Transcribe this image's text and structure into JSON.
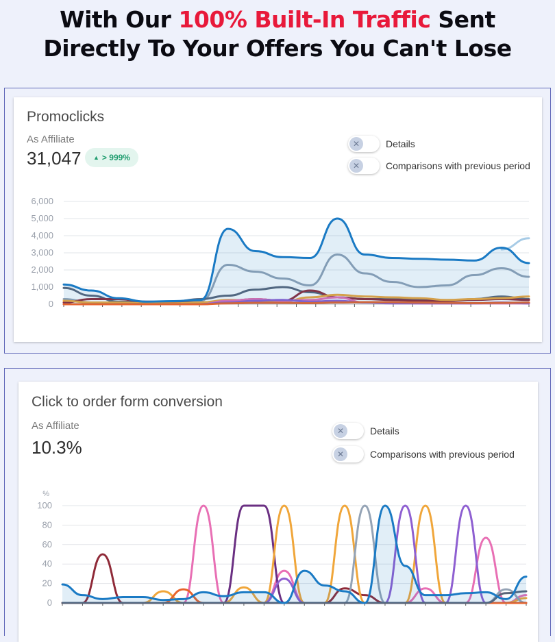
{
  "headline": {
    "line1_pre": "With Our ",
    "line1_accent": "100% Built-In Traffic",
    "line1_post": " Sent",
    "line2": "Directly To Your Offers You Can't Lose",
    "accent_color": "#e8193a"
  },
  "promoclicks": {
    "title": "Promoclicks",
    "subtitle": "As Affiliate",
    "value": "31,047",
    "badge": "> 999%",
    "badge_icon": "arrow-up-icon",
    "toggles": [
      {
        "label": "Details",
        "icon": "close-icon"
      },
      {
        "label": "Comparisons with previous period",
        "icon": "close-icon"
      }
    ]
  },
  "conversion": {
    "title": "Click to order form conversion",
    "subtitle": "As Affiliate",
    "value": "10.3%",
    "toggles": [
      {
        "label": "Details",
        "icon": "close-icon"
      },
      {
        "label": "Comparisons with previous period",
        "icon": "close-icon"
      }
    ]
  },
  "chart_data": [
    {
      "type": "area",
      "ylim": [
        0,
        6000
      ],
      "yticks": [
        "6,000",
        "5,000",
        "4,000",
        "3,000",
        "2,000",
        "1,000",
        "0"
      ],
      "grid": true,
      "x_count": 25,
      "series": [
        {
          "color": "#1a7ac4",
          "values": [
            1150,
            800,
            350,
            150,
            180,
            250,
            4400,
            3100,
            2750,
            2700,
            5000,
            2900,
            2700,
            2650,
            2600,
            2550,
            3300,
            2400
          ],
          "fill": true
        },
        {
          "color": "#94a3b5",
          "values": [
            300,
            100,
            80,
            80,
            120,
            200,
            2300,
            1900,
            1500,
            1100,
            2900,
            1800,
            1300,
            1000,
            1100,
            1700,
            2100,
            1600
          ]
        },
        {
          "color": "#a7cbe6",
          "values": [
            null,
            null,
            null,
            null,
            null,
            null,
            null,
            null,
            null,
            null,
            null,
            null,
            null,
            null,
            null,
            null,
            3200,
            3850
          ]
        },
        {
          "color": "#5a6478",
          "values": [
            950,
            500,
            150,
            100,
            150,
            300,
            500,
            850,
            1000,
            700,
            400,
            300,
            300,
            250,
            200,
            300,
            450,
            300
          ]
        },
        {
          "color": "#8f2a38",
          "values": [
            100,
            300,
            300,
            150,
            100,
            100,
            200,
            300,
            200,
            800,
            400,
            300,
            250,
            200,
            200,
            250,
            300,
            250
          ]
        },
        {
          "color": "#f0a63a",
          "values": [
            200,
            100,
            100,
            50,
            50,
            100,
            250,
            200,
            150,
            400,
            550,
            450,
            400,
            350,
            250,
            300,
            350,
            450
          ]
        },
        {
          "color": "#e86fb4",
          "values": [
            0,
            0,
            0,
            0,
            0,
            0,
            200,
            300,
            200,
            250,
            400,
            100,
            100,
            50,
            50,
            50,
            50,
            50
          ]
        },
        {
          "color": "#8e5fd1",
          "values": [
            0,
            0,
            0,
            0,
            0,
            0,
            100,
            200,
            250,
            150,
            200,
            100,
            50,
            50,
            50,
            50,
            100,
            50
          ]
        },
        {
          "color": "#e8632c",
          "values": [
            0,
            0,
            0,
            0,
            0,
            0,
            50,
            80,
            80,
            60,
            100,
            120,
            120,
            100,
            80,
            60,
            80,
            100
          ]
        }
      ]
    },
    {
      "type": "line",
      "ylabel": "%",
      "ylim": [
        0,
        100
      ],
      "yticks": [
        "100",
        "80",
        "60",
        "40",
        "20",
        "0"
      ],
      "grid": true,
      "x_count": 24,
      "series": [
        {
          "color": "#1a7ac4",
          "values": [
            19,
            8,
            4,
            6,
            6,
            3,
            4,
            11,
            7,
            11,
            11,
            0,
            33,
            18,
            12,
            0,
            100,
            38,
            8,
            8,
            10,
            11,
            4,
            27
          ],
          "fill": true
        },
        {
          "color": "#8f2a38",
          "values": [
            0,
            0,
            50,
            0,
            0,
            0,
            0,
            0,
            0,
            0,
            0,
            0,
            0,
            0,
            15,
            8,
            0,
            0,
            0,
            0,
            0,
            0,
            0,
            0
          ]
        },
        {
          "color": "#e86fb4",
          "values": [
            0,
            0,
            0,
            0,
            0,
            0,
            0,
            100,
            0,
            0,
            0,
            33,
            0,
            0,
            0,
            0,
            0,
            0,
            15,
            0,
            0,
            67,
            0,
            8
          ]
        },
        {
          "color": "#6a2f82",
          "values": [
            0,
            0,
            0,
            0,
            0,
            0,
            0,
            0,
            0,
            100,
            100,
            0,
            0,
            0,
            0,
            0,
            0,
            0,
            0,
            0,
            0,
            0,
            0,
            0
          ]
        },
        {
          "color": "#f0a63a",
          "values": [
            0,
            0,
            0,
            0,
            0,
            12,
            0,
            0,
            0,
            16,
            0,
            100,
            0,
            0,
            100,
            0,
            0,
            0,
            100,
            0,
            0,
            0,
            0,
            5
          ]
        },
        {
          "color": "#94a3b5",
          "values": [
            0,
            0,
            0,
            0,
            0,
            0,
            0,
            0,
            0,
            0,
            0,
            0,
            0,
            0,
            0,
            100,
            0,
            0,
            0,
            0,
            0,
            0,
            14,
            0
          ]
        },
        {
          "color": "#8e5fd1",
          "values": [
            0,
            0,
            0,
            0,
            0,
            0,
            0,
            0,
            0,
            0,
            0,
            25,
            0,
            0,
            0,
            0,
            0,
            100,
            0,
            0,
            100,
            0,
            0,
            0
          ]
        },
        {
          "color": "#e8632c",
          "values": [
            0,
            0,
            0,
            0,
            0,
            0,
            14,
            0,
            0,
            0,
            0,
            0,
            0,
            0,
            0,
            0,
            0,
            0,
            0,
            0,
            0,
            0,
            0,
            0
          ]
        },
        {
          "color": "#5a6478",
          "values": [
            0,
            0,
            0,
            0,
            0,
            0,
            0,
            0,
            0,
            0,
            0,
            0,
            0,
            0,
            0,
            0,
            0,
            0,
            0,
            0,
            0,
            0,
            10,
            12
          ]
        }
      ]
    }
  ]
}
